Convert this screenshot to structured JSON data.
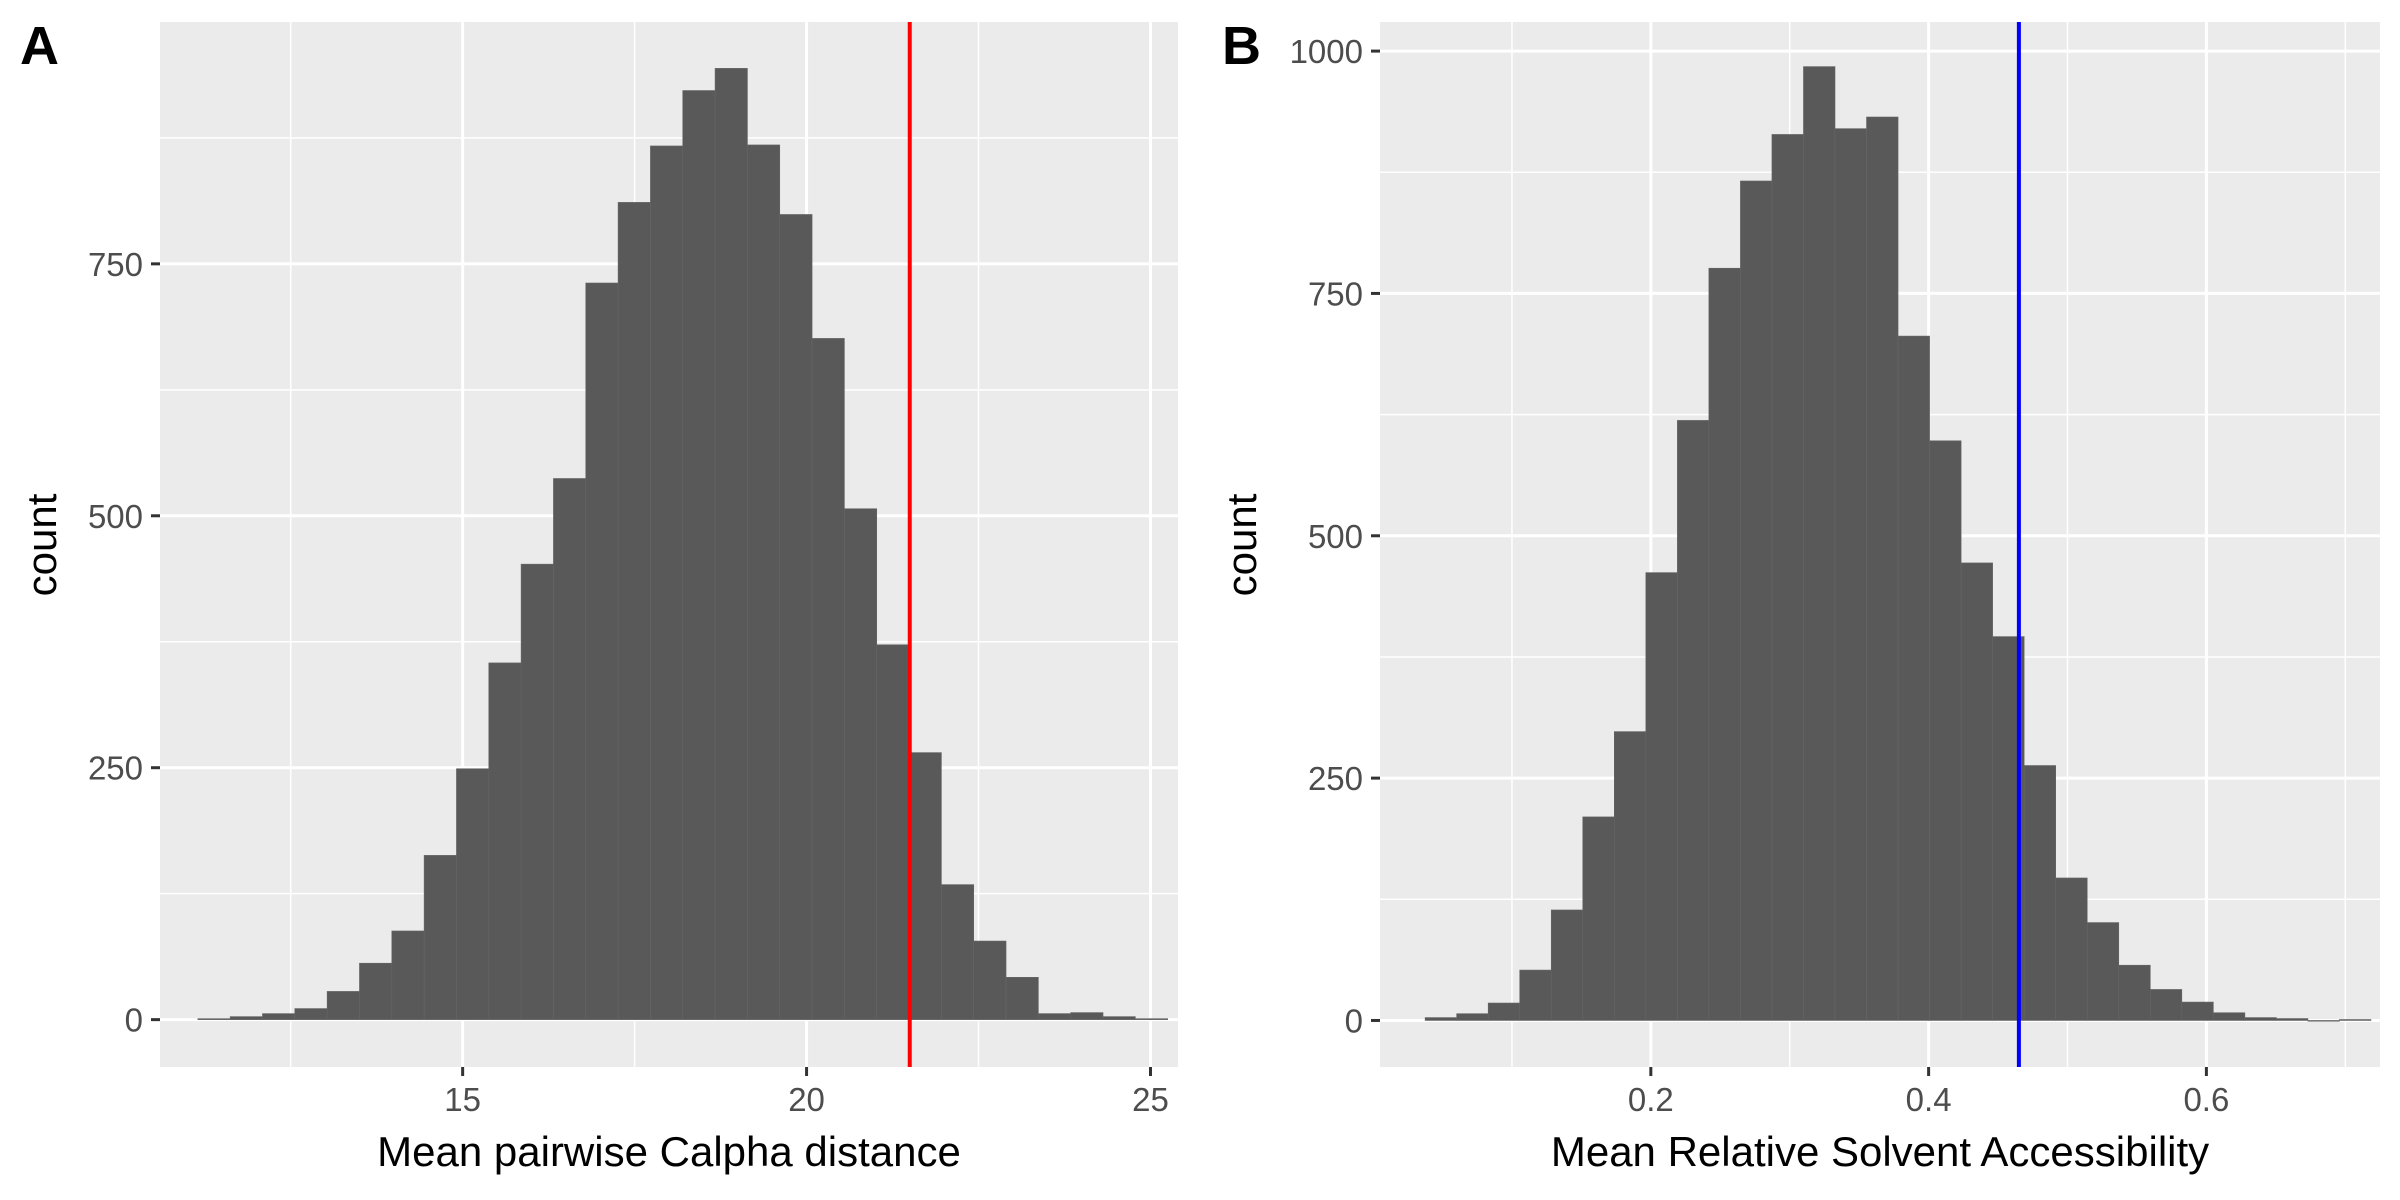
{
  "chart_data": [
    {
      "panel_label": "A",
      "type": "bar",
      "xlabel": "Mean pairwise Calpha distance",
      "ylabel": "count",
      "xlim": [
        10.6,
        25.4
      ],
      "ylim": [
        -47,
        990
      ],
      "x_ticks": [
        15,
        20,
        25
      ],
      "y_ticks": [
        0,
        250,
        500,
        750
      ],
      "x_tick_labels": [
        "15",
        "20",
        "25"
      ],
      "y_tick_labels": [
        "0",
        "250",
        "500",
        "750"
      ],
      "grid": true,
      "bin_start": 11.15,
      "bin_width": 0.47,
      "values": [
        1,
        3,
        6,
        11,
        28,
        56,
        88,
        163,
        249,
        354,
        452,
        537,
        731,
        811,
        867,
        922,
        944,
        868,
        799,
        676,
        507,
        372,
        265,
        134,
        78,
        42,
        6,
        7,
        3,
        1
      ],
      "ref_line": {
        "x": 21.5,
        "color": "#ff0000"
      },
      "bar_color": "#595959"
    },
    {
      "panel_label": "B",
      "type": "bar",
      "xlabel": "Mean Relative Solvent Accessibility",
      "ylabel": "count",
      "xlim": [
        0.005,
        0.725
      ],
      "ylim": [
        -48,
        1030
      ],
      "x_ticks": [
        0.2,
        0.4,
        0.6
      ],
      "y_ticks": [
        0,
        250,
        500,
        750,
        1000
      ],
      "x_tick_labels": [
        "0.2",
        "0.4",
        "0.6"
      ],
      "y_tick_labels": [
        "0",
        "250",
        "500",
        "750",
        "1000"
      ],
      "grid": true,
      "bin_start": 0.0375,
      "bin_width": 0.0227,
      "values": [
        3,
        7,
        18,
        52,
        114,
        210,
        298,
        462,
        619,
        776,
        866,
        914,
        984,
        920,
        932,
        706,
        598,
        472,
        396,
        263,
        147,
        101,
        57,
        32,
        19,
        8,
        3,
        2,
        0,
        1
      ],
      "ref_line": {
        "x": 0.465,
        "color": "#0000ff"
      },
      "bar_color": "#595959"
    }
  ],
  "style": {
    "panel_background": "#ebebeb",
    "grid_color": "#ffffff",
    "tick_color": "#333333"
  }
}
